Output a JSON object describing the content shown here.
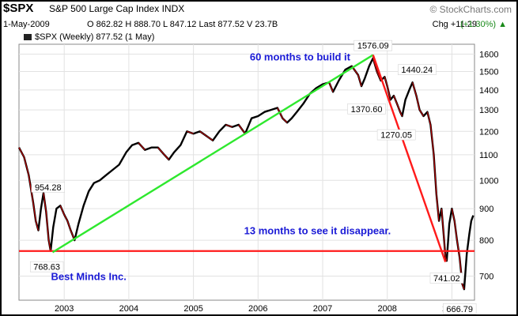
{
  "header": {
    "symbol": "$SPX",
    "name": "S&P 500 Large Cap Index",
    "exchange": "INDX",
    "brand": "© StockCharts.com",
    "date": "1-May-2009",
    "ohlc": "O 862.82  H 888.70  L 847.12  Last 877.52  V 23.7B",
    "change": "Chg +11.29",
    "change_pct": "(+1.30%)",
    "change_arrow": "▲",
    "up_color": "#1a8a1a"
  },
  "legend": {
    "label": "$SPX (Weekly) 877.52 (1 May)"
  },
  "chart_data": {
    "type": "line",
    "title": "S&P 500 Large Cap Index",
    "xlabel": "",
    "ylabel": "",
    "ylim": [
      640,
      1660
    ],
    "xlim": [
      2002.3,
      2009.35
    ],
    "log_scale": true,
    "grid": true,
    "y_ticks": [
      700,
      800,
      900,
      1000,
      1100,
      1200,
      1300,
      1400,
      1500,
      1600
    ],
    "x_tick_labels": [
      {
        "x": 2003.0,
        "label": "2003"
      },
      {
        "x": 2004.0,
        "label": "2004"
      },
      {
        "x": 2005.0,
        "label": "2005"
      },
      {
        "x": 2006.0,
        "label": "2006"
      },
      {
        "x": 2007.0,
        "label": "2007"
      },
      {
        "x": 2008.0,
        "label": "2008"
      },
      {
        "x": 2009.0,
        "label": "2009"
      }
    ],
    "series": [
      {
        "color": "#000000",
        "points": [
          [
            2002.3,
            1130
          ],
          [
            2002.38,
            1090
          ],
          [
            2002.45,
            1020
          ],
          [
            2002.52,
            920
          ],
          [
            2002.56,
            860
          ],
          [
            2002.6,
            830
          ],
          [
            2002.64,
            900
          ],
          [
            2002.68,
            954.28
          ],
          [
            2002.72,
            890
          ],
          [
            2002.76,
            800
          ],
          [
            2002.79,
            768.63
          ],
          [
            2002.83,
            840
          ],
          [
            2002.88,
            900
          ],
          [
            2002.94,
            910
          ],
          [
            2003.0,
            880
          ],
          [
            2003.05,
            860
          ],
          [
            2003.1,
            830
          ],
          [
            2003.16,
            800
          ],
          [
            2003.22,
            850
          ],
          [
            2003.3,
            910
          ],
          [
            2003.38,
            960
          ],
          [
            2003.46,
            990
          ],
          [
            2003.55,
            1000
          ],
          [
            2003.65,
            1020
          ],
          [
            2003.75,
            1040
          ],
          [
            2003.85,
            1060
          ],
          [
            2003.96,
            1110
          ],
          [
            2004.05,
            1140
          ],
          [
            2004.15,
            1150
          ],
          [
            2004.25,
            1120
          ],
          [
            2004.35,
            1130
          ],
          [
            2004.45,
            1130
          ],
          [
            2004.55,
            1100
          ],
          [
            2004.62,
            1080
          ],
          [
            2004.7,
            1110
          ],
          [
            2004.8,
            1140
          ],
          [
            2004.9,
            1200
          ],
          [
            2005.0,
            1190
          ],
          [
            2005.1,
            1200
          ],
          [
            2005.2,
            1180
          ],
          [
            2005.3,
            1160
          ],
          [
            2005.4,
            1200
          ],
          [
            2005.5,
            1230
          ],
          [
            2005.6,
            1220
          ],
          [
            2005.7,
            1230
          ],
          [
            2005.8,
            1190
          ],
          [
            2005.9,
            1260
          ],
          [
            2006.0,
            1270
          ],
          [
            2006.1,
            1290
          ],
          [
            2006.2,
            1300
          ],
          [
            2006.3,
            1310
          ],
          [
            2006.38,
            1260
          ],
          [
            2006.45,
            1240
          ],
          [
            2006.52,
            1260
          ],
          [
            2006.6,
            1290
          ],
          [
            2006.7,
            1330
          ],
          [
            2006.8,
            1380
          ],
          [
            2006.9,
            1410
          ],
          [
            2007.0,
            1430
          ],
          [
            2007.1,
            1440
          ],
          [
            2007.16,
            1390
          ],
          [
            2007.25,
            1450
          ],
          [
            2007.35,
            1510
          ],
          [
            2007.45,
            1530
          ],
          [
            2007.55,
            1480
          ],
          [
            2007.6,
            1420
          ],
          [
            2007.65,
            1460
          ],
          [
            2007.72,
            1530
          ],
          [
            2007.78,
            1576.09
          ],
          [
            2007.84,
            1500
          ],
          [
            2007.9,
            1450
          ],
          [
            2007.96,
            1470
          ],
          [
            2008.0,
            1420
          ],
          [
            2008.05,
            1350
          ],
          [
            2008.1,
            1370.6
          ],
          [
            2008.15,
            1330
          ],
          [
            2008.2,
            1290
          ],
          [
            2008.23,
            1270.05
          ],
          [
            2008.28,
            1350
          ],
          [
            2008.34,
            1400
          ],
          [
            2008.39,
            1440.24
          ],
          [
            2008.45,
            1370
          ],
          [
            2008.5,
            1300
          ],
          [
            2008.56,
            1270
          ],
          [
            2008.62,
            1290
          ],
          [
            2008.67,
            1230
          ],
          [
            2008.72,
            1100
          ],
          [
            2008.76,
            950
          ],
          [
            2008.8,
            860
          ],
          [
            2008.84,
            900
          ],
          [
            2008.88,
            800
          ],
          [
            2008.9,
            752
          ],
          [
            2008.92,
            741.02
          ],
          [
            2008.96,
            850
          ],
          [
            2009.0,
            900
          ],
          [
            2009.04,
            860
          ],
          [
            2009.08,
            800
          ],
          [
            2009.12,
            750
          ],
          [
            2009.16,
            680
          ],
          [
            2009.19,
            666.79
          ],
          [
            2009.23,
            760
          ],
          [
            2009.27,
            820
          ],
          [
            2009.3,
            860
          ],
          [
            2009.33,
            877.52
          ]
        ]
      }
    ],
    "annotations": [
      {
        "x": 2002.75,
        "y": 975,
        "label": "954.28"
      },
      {
        "x": 2002.73,
        "y": 725,
        "label": "768.63"
      },
      {
        "x": 2007.78,
        "y": 1652,
        "label": "1576.09"
      },
      {
        "x": 2007.68,
        "y": 1305,
        "label": "1370.60"
      },
      {
        "x": 2008.14,
        "y": 1185,
        "label": "1270.05"
      },
      {
        "x": 2008.46,
        "y": 1510,
        "label": "1440.24"
      },
      {
        "x": 2008.92,
        "y": 695,
        "label": "741.02"
      },
      {
        "x": 2009.12,
        "y": 620,
        "label": "666.79"
      }
    ],
    "trend_lines": [
      {
        "color": "#2ee82e",
        "from": [
          2002.82,
          765
        ],
        "to": [
          2007.78,
          1595
        ]
      },
      {
        "color": "#ff1a1a",
        "from": [
          2007.78,
          1595
        ],
        "to": [
          2008.9,
          738
        ]
      }
    ],
    "h_line": {
      "y": 768.63,
      "color": "#ff1a1a"
    },
    "text_annotations": [
      {
        "x": 2006.65,
        "y": 1585,
        "label": "60 months to build it",
        "color": "#1a1ad6"
      },
      {
        "x": 2006.92,
        "y": 830,
        "label": "13 months to see it disappear.",
        "color": "#1a1ad6"
      },
      {
        "x": 2003.38,
        "y": 700,
        "label": "Best Minds Inc.",
        "color": "#1a1ad6"
      }
    ]
  }
}
